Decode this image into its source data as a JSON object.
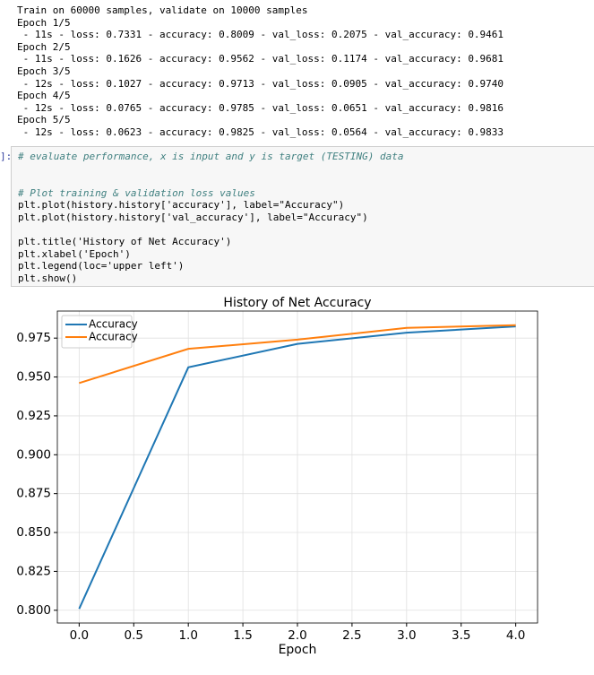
{
  "output_lines": [
    "Train on 60000 samples, validate on 10000 samples",
    "Epoch 1/5",
    " - 11s - loss: 0.7331 - accuracy: 0.8009 - val_loss: 0.2075 - val_accuracy: 0.9461",
    "Epoch 2/5",
    " - 11s - loss: 0.1626 - accuracy: 0.9562 - val_loss: 0.1174 - val_accuracy: 0.9681",
    "Epoch 3/5",
    " - 12s - loss: 0.1027 - accuracy: 0.9713 - val_loss: 0.0905 - val_accuracy: 0.9740",
    "Epoch 4/5",
    " - 12s - loss: 0.0765 - accuracy: 0.9785 - val_loss: 0.0651 - val_accuracy: 0.9816",
    "Epoch 5/5",
    " - 12s - loss: 0.0623 - accuracy: 0.9825 - val_loss: 0.0564 - val_accuracy: 0.9833"
  ],
  "code_prompt": "]:",
  "code_groups": [
    [
      "# evaluate performance, x is input and y is target (TESTING) data"
    ],
    [
      "# Plot training & validation loss values",
      "plt.plot(history.history['accuracy'], label=\"Accuracy\")",
      "plt.plot(history.history['val_accuracy'], label=\"Accuracy\")"
    ],
    [
      "plt.title('History of Net Accuracy')",
      "plt.xlabel('Epoch')",
      "plt.legend(loc='upper left')",
      "plt.show()"
    ]
  ],
  "chart_data": {
    "type": "line",
    "title": "History of Net Accuracy",
    "x_label": "Epoch",
    "x": [
      0,
      1,
      2,
      3,
      4
    ],
    "series": [
      {
        "name": "Accuracy",
        "color": "#1f77b4",
        "values": [
          0.8009,
          0.9562,
          0.9713,
          0.9785,
          0.9825
        ]
      },
      {
        "name": "Accuracy",
        "color": "#ff7f0e",
        "values": [
          0.9461,
          0.9681,
          0.974,
          0.9816,
          0.9833
        ]
      }
    ],
    "xlim": [
      -0.2,
      4.2
    ],
    "xticks": [
      {
        "value": 0,
        "label": "0.0"
      },
      0.5,
      {
        "value": 1,
        "label": "1.0"
      },
      1.5,
      {
        "value": 2,
        "label": "2.0"
      },
      2.5,
      {
        "value": 3,
        "label": "3.0"
      },
      3.5,
      {
        "value": 4,
        "label": "4.0"
      }
    ],
    "ylim": [
      0.7918,
      0.9924
    ],
    "yticks": [
      {
        "value": 0.8,
        "label": "0.800"
      },
      0.825,
      {
        "value": 0.85,
        "label": "0.850"
      },
      0.875,
      {
        "value": 0.9,
        "label": "0.900"
      },
      0.925,
      {
        "value": 0.95,
        "label": "0.950"
      },
      0.975
    ],
    "grid": true,
    "legend": "upper left"
  }
}
